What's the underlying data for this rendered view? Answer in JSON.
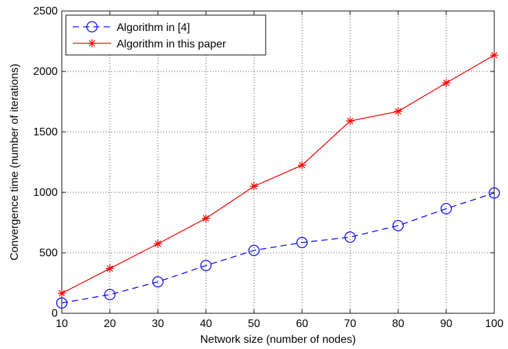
{
  "chart_data": {
    "type": "line",
    "xlabel": "Network size (number of nodes)",
    "ylabel": "Convergence time (number of iterations)",
    "xlim": [
      10,
      100
    ],
    "ylim": [
      0,
      2500
    ],
    "x_ticks": [
      10,
      20,
      30,
      40,
      50,
      60,
      70,
      80,
      90,
      100
    ],
    "y_ticks": [
      0,
      500,
      1000,
      1500,
      2000,
      2500
    ],
    "grid": true,
    "legend_position": "top-left",
    "x": [
      10,
      20,
      30,
      40,
      50,
      60,
      70,
      80,
      90,
      100
    ],
    "series": [
      {
        "name": "Algorithm in [4]",
        "values": [
          85,
          155,
          260,
          395,
          520,
          585,
          630,
          725,
          865,
          995
        ],
        "color": "#0000ff",
        "line_style": "dashed",
        "marker": "circle"
      },
      {
        "name": "Algorithm in this paper",
        "values": [
          165,
          370,
          575,
          785,
          1050,
          1225,
          1590,
          1670,
          1905,
          2135
        ],
        "color": "#ff0000",
        "line_style": "solid",
        "marker": "asterisk"
      }
    ]
  }
}
